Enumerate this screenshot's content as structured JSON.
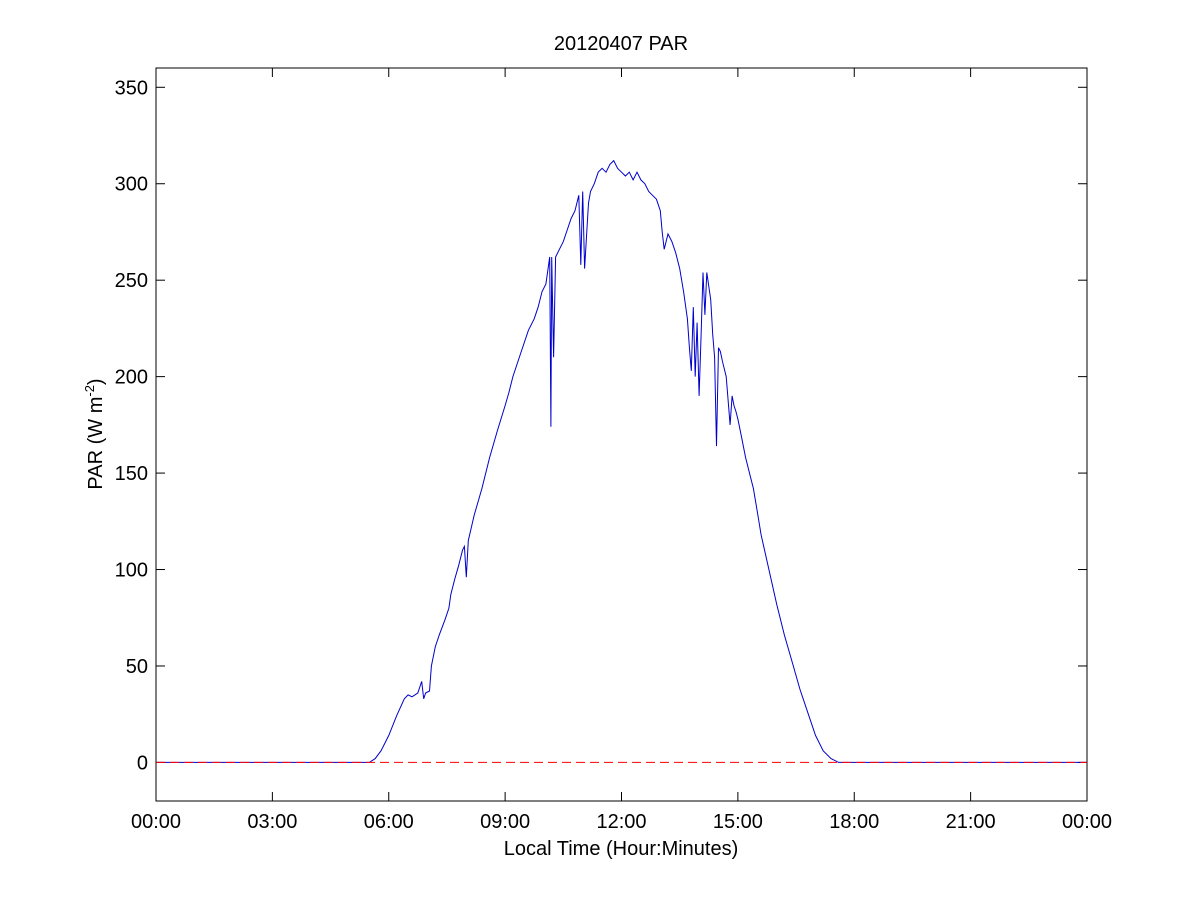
{
  "chart_data": {
    "type": "line",
    "title": "20120407 PAR",
    "xlabel": "Local Time (Hour:Minutes)",
    "ylabel_main": "PAR (W m",
    "ylabel_sup": "-2",
    "ylabel_close": ")",
    "xlim": [
      0,
      24
    ],
    "ylim": [
      -20,
      360
    ],
    "x_ticks": [
      0,
      3,
      6,
      9,
      12,
      15,
      18,
      21,
      24
    ],
    "x_tick_labels": [
      "00:00",
      "03:00",
      "06:00",
      "09:00",
      "12:00",
      "15:00",
      "18:00",
      "21:00",
      "00:00"
    ],
    "y_ticks": [
      0,
      50,
      100,
      150,
      200,
      250,
      300,
      350
    ],
    "y_tick_labels": [
      "0",
      "50",
      "100",
      "150",
      "200",
      "250",
      "300",
      "350"
    ],
    "grid": false,
    "series": [
      {
        "color": "#0000cc",
        "style": "solid",
        "x": [
          0,
          5.5,
          5.65,
          5.8,
          6.0,
          6.2,
          6.4,
          6.5,
          6.6,
          6.75,
          6.85,
          6.9,
          6.95,
          7.05,
          7.1,
          7.2,
          7.3,
          7.45,
          7.55,
          7.6,
          7.7,
          7.8,
          7.9,
          7.95,
          8.0,
          8.05,
          8.2,
          8.4,
          8.6,
          8.8,
          9.0,
          9.1,
          9.2,
          9.4,
          9.6,
          9.75,
          9.85,
          9.95,
          10.05,
          10.1,
          10.15,
          10.18,
          10.2,
          10.25,
          10.3,
          10.4,
          10.5,
          10.6,
          10.7,
          10.8,
          10.9,
          10.95,
          11.0,
          11.05,
          11.15,
          11.2,
          11.3,
          11.4,
          11.5,
          11.6,
          11.7,
          11.8,
          11.9,
          12.0,
          12.1,
          12.2,
          12.3,
          12.4,
          12.5,
          12.6,
          12.7,
          12.8,
          12.9,
          13.0,
          13.05,
          13.1,
          13.2,
          13.3,
          13.4,
          13.5,
          13.6,
          13.7,
          13.75,
          13.8,
          13.85,
          13.9,
          13.95,
          14.0,
          14.05,
          14.1,
          14.15,
          14.2,
          14.3,
          14.35,
          14.4,
          14.45,
          14.5,
          14.55,
          14.6,
          14.7,
          14.8,
          14.85,
          14.9,
          14.95,
          15.0,
          15.1,
          15.2,
          15.3,
          15.4,
          15.5,
          15.6,
          15.8,
          16.0,
          16.2,
          16.4,
          16.6,
          16.8,
          17.0,
          17.2,
          17.4,
          17.6,
          17.8,
          18.0,
          18.2,
          18.4,
          18.6,
          24
        ],
        "y": [
          0,
          0,
          2,
          6,
          14,
          24,
          33,
          35,
          34,
          36,
          42,
          33,
          36,
          37,
          50,
          60,
          66,
          74,
          80,
          87,
          95,
          102,
          110,
          112,
          96,
          115,
          128,
          142,
          158,
          172,
          185,
          192,
          200,
          212,
          224,
          230,
          236,
          244,
          248,
          255,
          262,
          174,
          262,
          210,
          262,
          266,
          270,
          276,
          282,
          286,
          294,
          258,
          296,
          256,
          290,
          296,
          300,
          306,
          308,
          306,
          310,
          312,
          308,
          306,
          304,
          306,
          302,
          306,
          302,
          300,
          296,
          294,
          292,
          286,
          275,
          266,
          274,
          270,
          264,
          256,
          244,
          230,
          215,
          203,
          236,
          200,
          228,
          190,
          220,
          254,
          232,
          254,
          240,
          222,
          210,
          164,
          215,
          213,
          208,
          200,
          175,
          190,
          185,
          182,
          178,
          168,
          158,
          150,
          142,
          130,
          118,
          100,
          82,
          66,
          52,
          38,
          26,
          14,
          6,
          2,
          0,
          0,
          0,
          0,
          0,
          0,
          0
        ]
      },
      {
        "color": "#ff0000",
        "style": "dashed",
        "x": [
          0,
          24
        ],
        "y": [
          0,
          0
        ]
      }
    ]
  }
}
